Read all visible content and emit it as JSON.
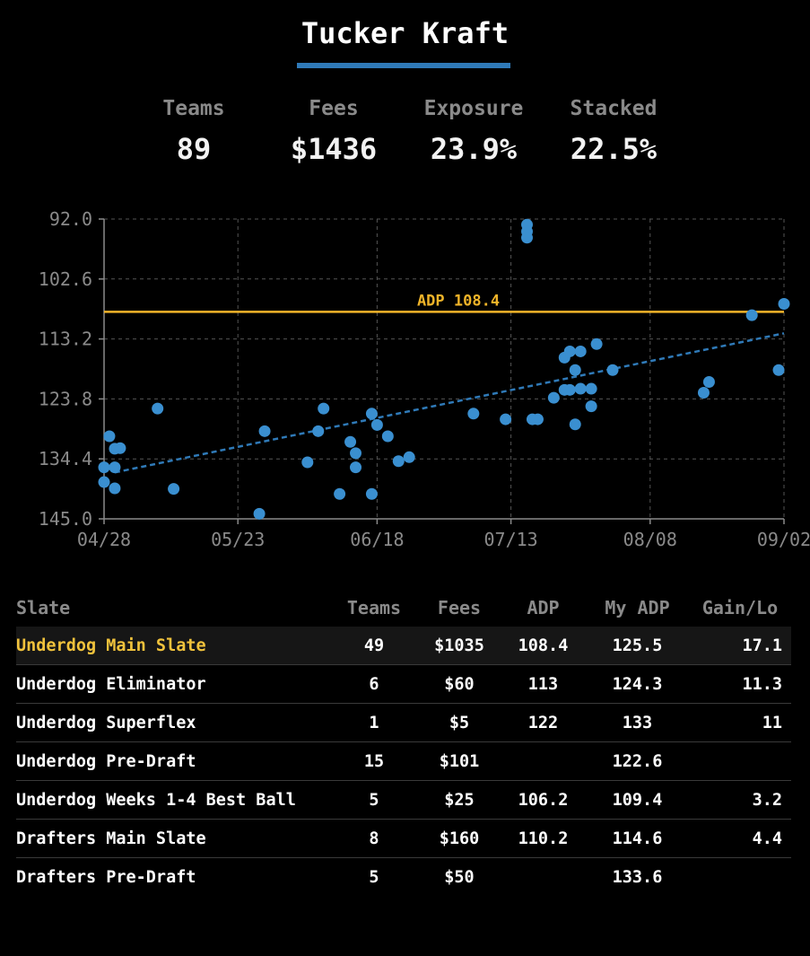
{
  "header": {
    "title": "Tucker Kraft"
  },
  "stats": [
    {
      "label": "Teams",
      "value": "89"
    },
    {
      "label": "Fees",
      "value": "$1436"
    },
    {
      "label": "Exposure",
      "value": "23.9%"
    },
    {
      "label": "Stacked",
      "value": "22.5%"
    }
  ],
  "chart_data": {
    "type": "scatter",
    "y_reversed": true,
    "ylim": [
      92.0,
      145.0
    ],
    "y_ticks": [
      "92.0",
      "102.6",
      "113.2",
      "123.8",
      "134.4",
      "145.0"
    ],
    "x_ticks": [
      "04/28",
      "05/23",
      "06/18",
      "07/13",
      "08/08",
      "09/02"
    ],
    "x_range": [
      "04/28",
      "09/02"
    ],
    "grid": true,
    "reference_line": {
      "value": 108.4,
      "label": "ADP 108.4"
    },
    "trend_line": {
      "from": {
        "x": "04/30",
        "y": 136.8
      },
      "to": {
        "x": "09/02",
        "y": 112.2
      }
    },
    "points": [
      {
        "x": "04/28",
        "y": 135.9
      },
      {
        "x": "04/28",
        "y": 138.5
      },
      {
        "x": "04/29",
        "y": 130.4
      },
      {
        "x": "04/30",
        "y": 135.9
      },
      {
        "x": "04/30",
        "y": 132.6
      },
      {
        "x": "04/30",
        "y": 139.6
      },
      {
        "x": "05/01",
        "y": 132.5
      },
      {
        "x": "05/08",
        "y": 125.5
      },
      {
        "x": "05/11",
        "y": 139.7
      },
      {
        "x": "05/27",
        "y": 144.1
      },
      {
        "x": "05/28",
        "y": 129.5
      },
      {
        "x": "06/05",
        "y": 135.0
      },
      {
        "x": "06/07",
        "y": 129.5
      },
      {
        "x": "06/08",
        "y": 125.5
      },
      {
        "x": "06/11",
        "y": 140.6
      },
      {
        "x": "06/13",
        "y": 131.4
      },
      {
        "x": "06/14",
        "y": 133.4
      },
      {
        "x": "06/14",
        "y": 135.9
      },
      {
        "x": "06/17",
        "y": 140.6
      },
      {
        "x": "06/17",
        "y": 126.4
      },
      {
        "x": "06/18",
        "y": 128.4
      },
      {
        "x": "06/20",
        "y": 130.4
      },
      {
        "x": "06/22",
        "y": 134.8
      },
      {
        "x": "06/24",
        "y": 134.1
      },
      {
        "x": "07/06",
        "y": 126.4
      },
      {
        "x": "07/12",
        "y": 127.4
      },
      {
        "x": "07/16",
        "y": 93.0
      },
      {
        "x": "07/16",
        "y": 94.2
      },
      {
        "x": "07/16",
        "y": 95.3
      },
      {
        "x": "07/17",
        "y": 127.4
      },
      {
        "x": "07/18",
        "y": 127.4
      },
      {
        "x": "07/21",
        "y": 123.6
      },
      {
        "x": "07/23",
        "y": 116.5
      },
      {
        "x": "07/23",
        "y": 122.2
      },
      {
        "x": "07/24",
        "y": 115.4
      },
      {
        "x": "07/24",
        "y": 122.2
      },
      {
        "x": "07/25",
        "y": 118.7
      },
      {
        "x": "07/25",
        "y": 128.3
      },
      {
        "x": "07/26",
        "y": 122.0
      },
      {
        "x": "07/26",
        "y": 115.4
      },
      {
        "x": "07/28",
        "y": 125.1
      },
      {
        "x": "07/28",
        "y": 122.0
      },
      {
        "x": "07/29",
        "y": 114.1
      },
      {
        "x": "08/01",
        "y": 118.7
      },
      {
        "x": "08/18",
        "y": 122.7
      },
      {
        "x": "08/19",
        "y": 120.8
      },
      {
        "x": "08/27",
        "y": 109.0
      },
      {
        "x": "09/01",
        "y": 118.7
      },
      {
        "x": "09/02",
        "y": 107.0
      }
    ]
  },
  "table": {
    "headers": {
      "slate": "Slate",
      "teams": "Teams",
      "fees": "Fees",
      "adp": "ADP",
      "my_adp": "My ADP",
      "gain_loss": "Gain/Lo"
    },
    "rows": [
      {
        "slate": "Underdog Main Slate",
        "teams": "49",
        "fees": "$1035",
        "adp": "108.4",
        "my_adp": "125.5",
        "gain_loss": "17.1"
      },
      {
        "slate": "Underdog Eliminator",
        "teams": "6",
        "fees": "$60",
        "adp": "113",
        "my_adp": "124.3",
        "gain_loss": "11.3"
      },
      {
        "slate": "Underdog Superflex",
        "teams": "1",
        "fees": "$5",
        "adp": "122",
        "my_adp": "133",
        "gain_loss": "11"
      },
      {
        "slate": "Underdog Pre-Draft",
        "teams": "15",
        "fees": "$101",
        "adp": "",
        "my_adp": "122.6",
        "gain_loss": ""
      },
      {
        "slate": "Underdog Weeks 1-4 Best Ball",
        "teams": "5",
        "fees": "$25",
        "adp": "106.2",
        "my_adp": "109.4",
        "gain_loss": "3.2"
      },
      {
        "slate": "Drafters Main Slate",
        "teams": "8",
        "fees": "$160",
        "adp": "110.2",
        "my_adp": "114.6",
        "gain_loss": "4.4"
      },
      {
        "slate": "Drafters Pre-Draft",
        "teams": "5",
        "fees": "$50",
        "adp": "",
        "my_adp": "133.6",
        "gain_loss": ""
      }
    ]
  },
  "colors": {
    "accent": "#2f7ab8",
    "point": "#3a8fd0",
    "adp_line": "#f0b429",
    "highlight_text": "#f0c23c",
    "muted": "#8a8a8a"
  }
}
